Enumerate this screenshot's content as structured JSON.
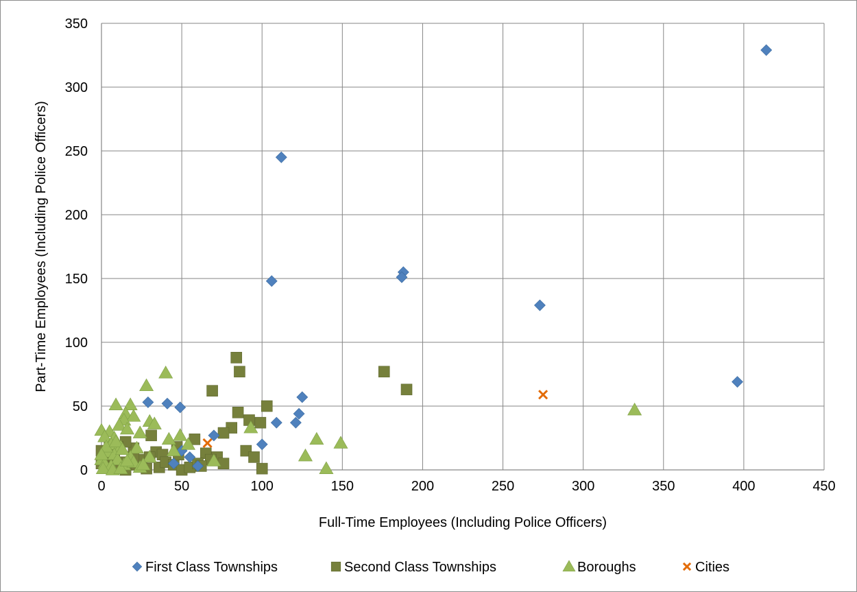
{
  "chart_data": {
    "type": "scatter",
    "title": "",
    "xlabel": "Full-Time Employees (Including Police Officers)",
    "ylabel": "Part-Time Employees (Including Police Officers)",
    "xlim": [
      0,
      450
    ],
    "ylim": [
      0,
      350
    ],
    "x_ticks": [
      "0",
      "50",
      "100",
      "150",
      "200",
      "250",
      "300",
      "350",
      "400",
      "450"
    ],
    "y_ticks": [
      "0",
      "50",
      "100",
      "150",
      "200",
      "250",
      "300",
      "350"
    ],
    "grid": true,
    "legend_position": "bottom",
    "series": [
      {
        "name": "First Class Townships",
        "marker": "diamond",
        "color": "#4f81bd",
        "points": [
          [
            414,
            329
          ],
          [
            112,
            245
          ],
          [
            188,
            155
          ],
          [
            187,
            151
          ],
          [
            106,
            148
          ],
          [
            273,
            129
          ],
          [
            396,
            69
          ],
          [
            125,
            57
          ],
          [
            29,
            53
          ],
          [
            41,
            52
          ],
          [
            49,
            49
          ],
          [
            123,
            44
          ],
          [
            109,
            37
          ],
          [
            121,
            37
          ],
          [
            70,
            27
          ],
          [
            100,
            20
          ],
          [
            50,
            15
          ],
          [
            55,
            10
          ],
          [
            45,
            5
          ],
          [
            60,
            3
          ]
        ]
      },
      {
        "name": "Second Class Townships",
        "marker": "square",
        "color": "#76803c",
        "points": [
          [
            84,
            88
          ],
          [
            176,
            77
          ],
          [
            86,
            77
          ],
          [
            69,
            62
          ],
          [
            190,
            63
          ],
          [
            103,
            50
          ],
          [
            85,
            45
          ],
          [
            81,
            33
          ],
          [
            92,
            39
          ],
          [
            99,
            37
          ],
          [
            76,
            29
          ],
          [
            31,
            27
          ],
          [
            58,
            24
          ],
          [
            47,
            18
          ],
          [
            65,
            13
          ],
          [
            90,
            15
          ],
          [
            72,
            10
          ],
          [
            34,
            14
          ],
          [
            38,
            12
          ],
          [
            20,
            17
          ],
          [
            15,
            22
          ],
          [
            10,
            18
          ],
          [
            5,
            20
          ],
          [
            0,
            15
          ],
          [
            2,
            10
          ],
          [
            8,
            8
          ],
          [
            12,
            6
          ],
          [
            18,
            4
          ],
          [
            25,
            8
          ],
          [
            30,
            10
          ],
          [
            36,
            2
          ],
          [
            40,
            6
          ],
          [
            45,
            4
          ],
          [
            50,
            0
          ],
          [
            55,
            2
          ],
          [
            60,
            5
          ],
          [
            68,
            8
          ],
          [
            76,
            5
          ],
          [
            95,
            10
          ],
          [
            100,
            1
          ],
          [
            0,
            5
          ],
          [
            4,
            2
          ],
          [
            15,
            0
          ],
          [
            28,
            1
          ],
          [
            48,
            12
          ],
          [
            62,
            3
          ],
          [
            20,
            10
          ],
          [
            10,
            2
          ]
        ]
      },
      {
        "name": "Boroughs",
        "marker": "triangle",
        "color": "#9bbb59",
        "points": [
          [
            40,
            76
          ],
          [
            28,
            66
          ],
          [
            332,
            47
          ],
          [
            9,
            51
          ],
          [
            18,
            51
          ],
          [
            15,
            44
          ],
          [
            20,
            42
          ],
          [
            14,
            39
          ],
          [
            30,
            38
          ],
          [
            33,
            36
          ],
          [
            11,
            35
          ],
          [
            16,
            32
          ],
          [
            0,
            31
          ],
          [
            5,
            30
          ],
          [
            24,
            29
          ],
          [
            49,
            27
          ],
          [
            2,
            26
          ],
          [
            8,
            25
          ],
          [
            42,
            24
          ],
          [
            134,
            24
          ],
          [
            149,
            21
          ],
          [
            54,
            20
          ],
          [
            6,
            20
          ],
          [
            12,
            18
          ],
          [
            22,
            17
          ],
          [
            45,
            15
          ],
          [
            93,
            33
          ],
          [
            127,
            11
          ],
          [
            70,
            7
          ],
          [
            140,
            1
          ],
          [
            30,
            10
          ],
          [
            18,
            10
          ],
          [
            4,
            14
          ],
          [
            8,
            12
          ],
          [
            10,
            8
          ],
          [
            0,
            8
          ],
          [
            2,
            5
          ],
          [
            6,
            3
          ],
          [
            14,
            4
          ],
          [
            20,
            6
          ],
          [
            24,
            2
          ],
          [
            1,
            1
          ],
          [
            7,
            0
          ],
          [
            12,
            1
          ],
          [
            16,
            7
          ],
          [
            26,
            4
          ],
          [
            3,
            18
          ],
          [
            9,
            22
          ],
          [
            13,
            16
          ],
          [
            0,
            12
          ]
        ]
      },
      {
        "name": "Cities",
        "marker": "x",
        "color": "#e36c09",
        "points": [
          [
            66,
            21
          ],
          [
            275,
            59
          ]
        ]
      }
    ]
  }
}
